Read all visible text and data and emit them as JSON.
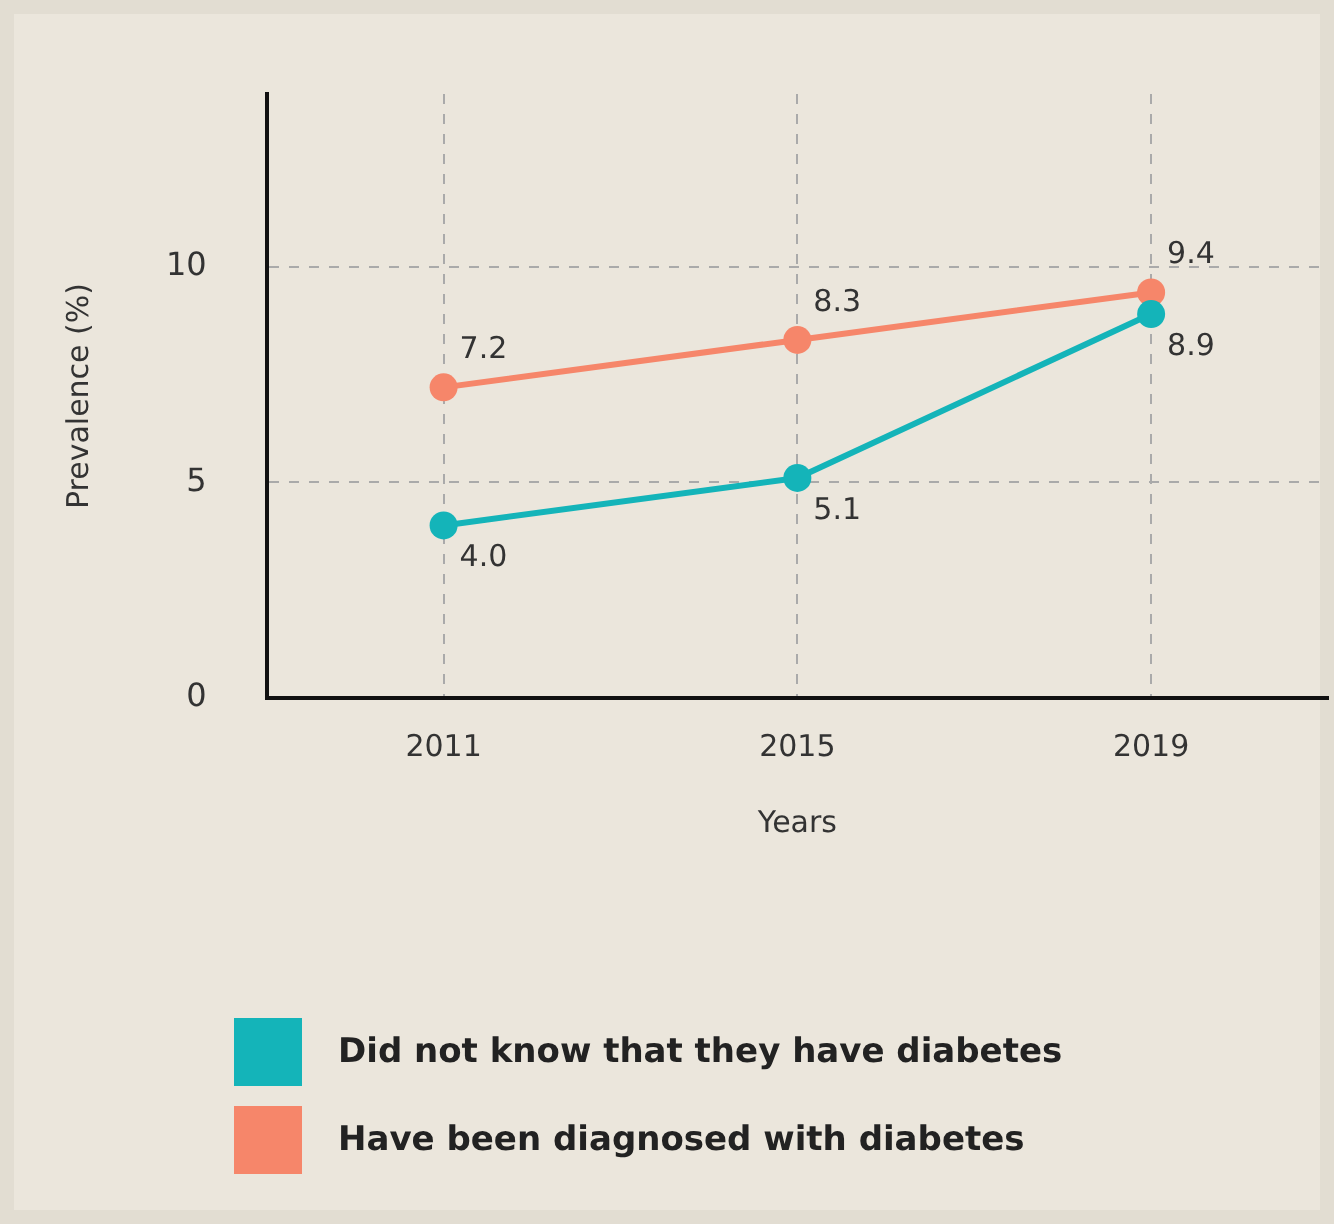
{
  "chart_data": {
    "type": "line",
    "xlabel": "Years",
    "ylabel": "Prevalence (%)",
    "categories": [
      "2011",
      "2015",
      "2019"
    ],
    "series": [
      {
        "name": "Did not know that they have diabetes",
        "color": "#14b4b9",
        "values": [
          4.0,
          5.1,
          8.9
        ],
        "value_labels": [
          "4.0",
          "5.1",
          "8.9"
        ]
      },
      {
        "name": "Have been diagnosed with diabetes",
        "color": "#f6866a",
        "values": [
          7.2,
          8.3,
          9.4
        ],
        "value_labels": [
          "7.2",
          "8.3",
          "9.4"
        ]
      }
    ],
    "ylim": [
      0,
      14
    ],
    "yticks": [
      0,
      5,
      10
    ],
    "grid": true,
    "legend": "bottom",
    "marker": "circle",
    "line_style": "solid"
  }
}
